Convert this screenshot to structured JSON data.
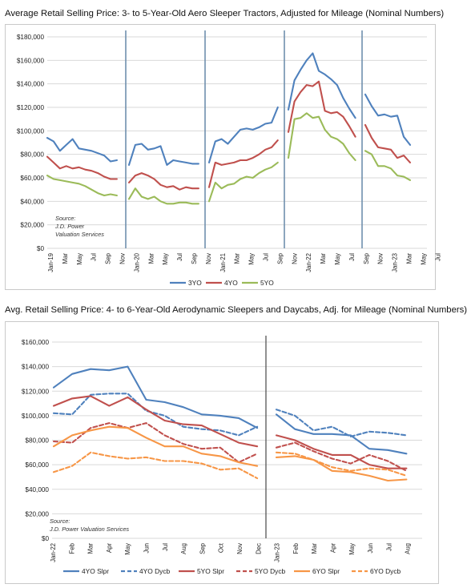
{
  "chart_data": [
    {
      "type": "line",
      "title": "Average Retail Selling Price: 3- to 5-Year-Old Aero Sleeper Tractors, Adjusted for Mileage (Nominal Numbers)",
      "ylim": [
        0,
        180000
      ],
      "yticks": [
        "$0",
        "$20,000",
        "$40,000",
        "$60,000",
        "$80,000",
        "$100,000",
        "$120,000",
        "$140,000",
        "$160,000",
        "$180,000"
      ],
      "x_labels": [
        "Jan-19",
        "Mar",
        "May",
        "Jul",
        "Sep",
        "Nov",
        "Jan-20",
        "Mar",
        "May",
        "Jul",
        "Sep",
        "Nov",
        "Jan-21",
        "Mar",
        "May",
        "Jul",
        "Sep",
        "Nov",
        "Jan-22",
        "Mar",
        "May",
        "Jul",
        "Sep",
        "Nov",
        "Jan-23",
        "Mar",
        "May",
        "Jul"
      ],
      "grid": true,
      "legend_position": "bottom",
      "annotation": [
        "Source:",
        "J.D. Power",
        "Valuation Services"
      ],
      "colors": {
        "3YO": "#4f81bd",
        "4YO": "#c0504d",
        "5YO": "#9bbb59"
      },
      "series": [
        {
          "name": "3YO",
          "values": [
            94000,
            91000,
            83000,
            88000,
            93000,
            85000,
            84000,
            83000,
            81000,
            79000,
            74000,
            75000,
            71000,
            88000,
            89000,
            84000,
            85000,
            87000,
            71000,
            75000,
            74000,
            73000,
            72000,
            72000,
            73000,
            91000,
            93000,
            89000,
            95000,
            101000,
            102000,
            101000,
            103000,
            106000,
            107000,
            120000,
            118000,
            143000,
            152000,
            160000,
            166000,
            151000,
            148000,
            144000,
            139000,
            128000,
            119000,
            111000,
            131000,
            121000,
            113000,
            114000,
            112000,
            113000,
            95000,
            88000
          ]
        },
        {
          "name": "4YO",
          "values": [
            78000,
            73000,
            68000,
            70000,
            68000,
            69000,
            67000,
            66000,
            64000,
            61000,
            59000,
            59000,
            56000,
            62000,
            64000,
            62000,
            59000,
            54000,
            52000,
            53000,
            50000,
            52000,
            51000,
            51000,
            52000,
            73000,
            71000,
            72000,
            73000,
            75000,
            75000,
            77000,
            80000,
            84000,
            86000,
            92000,
            99000,
            125000,
            133000,
            139000,
            138000,
            142000,
            117000,
            115000,
            116000,
            112000,
            104000,
            95000,
            105000,
            94000,
            86000,
            85000,
            84000,
            77000,
            79000,
            73000
          ]
        },
        {
          "name": "5YO",
          "values": [
            62000,
            59000,
            58000,
            57000,
            56000,
            55000,
            53000,
            50000,
            47000,
            45000,
            46000,
            45000,
            42000,
            51000,
            44000,
            42000,
            44000,
            40000,
            38000,
            38000,
            39000,
            39000,
            38000,
            38000,
            40000,
            56000,
            51000,
            54000,
            55000,
            59000,
            61000,
            60000,
            64000,
            67000,
            69000,
            73000,
            77000,
            110000,
            111000,
            115000,
            111000,
            112000,
            101000,
            95000,
            93000,
            89000,
            81000,
            75000,
            83000,
            80000,
            70000,
            70000,
            68000,
            62000,
            61000,
            58000
          ]
        }
      ]
    },
    {
      "type": "line",
      "title": "Avg. Retail Selling Price: 4- to 6-Year-Old Aerodynamic Sleepers and Daycabs, Adj. for Mileage (Nominal Numbers)",
      "ylim": [
        0,
        160000
      ],
      "yticks": [
        "$0",
        "$20,000",
        "$40,000",
        "$60,000",
        "$80,000",
        "$100,000",
        "$120,000",
        "$140,000",
        "$160,000"
      ],
      "x_labels": [
        "Jan-22",
        "Feb",
        "Mar",
        "Apr",
        "May",
        "Jun",
        "Jul",
        "Aug",
        "Sep",
        "Oct",
        "Nov",
        "Dec",
        "Jan-23",
        "Feb",
        "Mar",
        "Apr",
        "May",
        "Jun",
        "Jul",
        "Aug"
      ],
      "grid": true,
      "legend_position": "bottom",
      "annotation": [
        "Source:",
        "J.D. Power Valuation Services"
      ],
      "colors": {
        "4YO Slpr": "#4f81bd",
        "4YO Dycb": "#4f81bd",
        "5YO Slpr": "#c0504d",
        "5YO Dycb": "#c0504d",
        "6YO Slpr": "#f79646",
        "6YO Dycb": "#f79646"
      },
      "series": [
        {
          "name": "4YO Slpr",
          "dashed": false,
          "values": [
            123000,
            134000,
            138000,
            137000,
            140000,
            113000,
            111000,
            107000,
            101000,
            100000,
            98000,
            90000,
            101000,
            89000,
            85000,
            85000,
            84000,
            73000,
            72000,
            69000
          ]
        },
        {
          "name": "4YO Dycb",
          "dashed": true,
          "values": [
            102000,
            101000,
            117000,
            118000,
            118000,
            104000,
            100000,
            91000,
            89000,
            88000,
            84000,
            91000,
            105000,
            100000,
            88000,
            91000,
            83000,
            87000,
            86000,
            84000
          ]
        },
        {
          "name": "5YO Slpr",
          "dashed": false,
          "values": [
            108000,
            114000,
            116000,
            108000,
            115000,
            105000,
            96000,
            93000,
            92000,
            85000,
            78000,
            75000,
            84000,
            80000,
            73000,
            68000,
            68000,
            60000,
            57000,
            57000
          ]
        },
        {
          "name": "5YO Dycb",
          "dashed": true,
          "values": [
            79000,
            78000,
            90000,
            94000,
            90000,
            94000,
            84000,
            77000,
            73000,
            74000,
            62000,
            69000,
            74000,
            78000,
            71000,
            65000,
            61000,
            68000,
            63000,
            55000
          ]
        },
        {
          "name": "6YO Slpr",
          "dashed": false,
          "values": [
            75000,
            84000,
            88000,
            91000,
            90000,
            82000,
            75000,
            75000,
            69000,
            67000,
            62000,
            59000,
            66000,
            67000,
            64000,
            55000,
            54000,
            51000,
            47000,
            48000
          ]
        },
        {
          "name": "6YO Dycb",
          "dashed": true,
          "values": [
            54000,
            59000,
            70000,
            67000,
            65000,
            66000,
            63000,
            63000,
            61000,
            56000,
            57000,
            49000,
            70000,
            69000,
            64000,
            58000,
            55000,
            57000,
            56000,
            51000
          ]
        }
      ]
    }
  ]
}
